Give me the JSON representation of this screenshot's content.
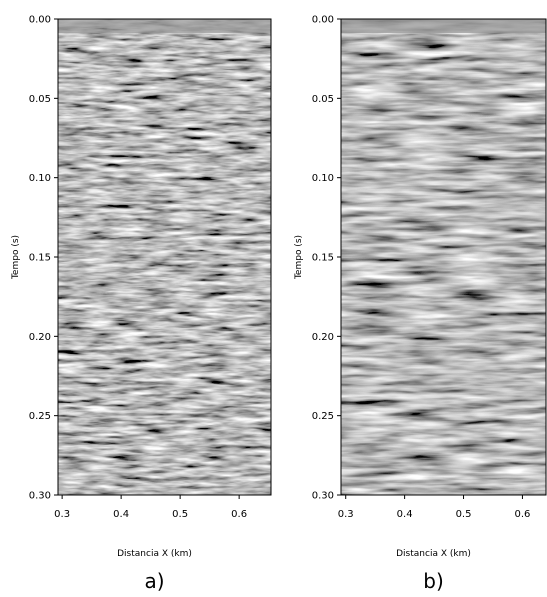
{
  "chart_data": [
    {
      "type": "image",
      "label": "a)",
      "xlabel": "Distancia X  (km)",
      "ylabel": "Tempo (s)",
      "xlim": [
        0.293,
        0.654
      ],
      "ylim": [
        0,
        0.3
      ],
      "y_inverted": true,
      "xticks": [
        0.3,
        0.4,
        0.5,
        0.6
      ],
      "yticks": [
        {
          "value": 0,
          "label": "0.00"
        },
        0.05,
        {
          "value": 0.1,
          "label": "0.10"
        },
        0.15,
        {
          "value": 0.2,
          "label": "0.20"
        },
        0.25,
        {
          "value": 0.3,
          "label": "0.30"
        }
      ]
    },
    {
      "type": "image",
      "label": "b)",
      "xlabel": "Distancia X  (km)",
      "ylabel": "Tempo (s)",
      "xlim": [
        0.292,
        0.64
      ],
      "ylim": [
        0,
        0.3
      ],
      "y_inverted": true,
      "xticks": [
        0.3,
        0.4,
        0.5,
        0.6
      ],
      "yticks": [
        {
          "value": 0,
          "label": "0.00"
        },
        0.05,
        {
          "value": 0.1,
          "label": "0.10"
        },
        0.15,
        {
          "value": 0.2,
          "label": "0.20"
        },
        0.25,
        {
          "value": 0.3,
          "label": "0.30"
        }
      ]
    }
  ]
}
